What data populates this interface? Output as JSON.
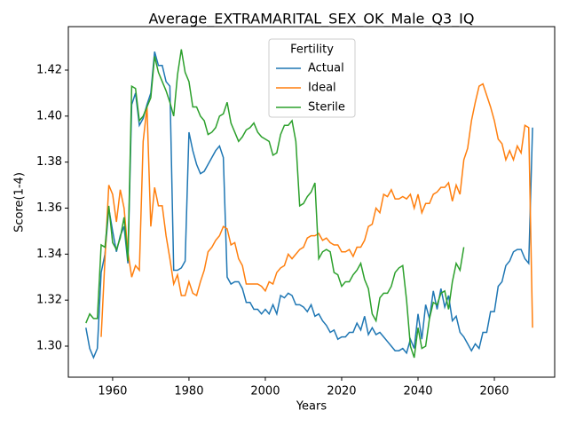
{
  "chart_data": {
    "type": "line",
    "title": "Average_EXTRAMARITAL_SEX_OK_Male_Q3_IQ",
    "x_label": "Years",
    "y_label": "Score(1-4)",
    "legend_title": "Fertility",
    "legend_position": "upper center",
    "xlim": [
      1948.4,
      2075.8
    ],
    "ylim": [
      1.2865,
      1.4389
    ],
    "xticks": [
      1960,
      1980,
      2000,
      2020,
      2040,
      2060
    ],
    "yticks": [
      {
        "value": 1.3,
        "label": "1.30"
      },
      1.32,
      1.34,
      1.36,
      1.38,
      {
        "value": 1.4,
        "label": "1.40"
      },
      1.42
    ],
    "x": [
      1953,
      1954,
      1955,
      1956,
      1957,
      1958,
      1959,
      1960,
      1961,
      1962,
      1963,
      1964,
      1965,
      1966,
      1967,
      1968,
      1969,
      1970,
      1971,
      1972,
      1973,
      1974,
      1975,
      1976,
      1977,
      1978,
      1979,
      1980,
      1981,
      1982,
      1983,
      1984,
      1985,
      1986,
      1987,
      1988,
      1989,
      1990,
      1991,
      1992,
      1993,
      1994,
      1995,
      1996,
      1997,
      1998,
      1999,
      2000,
      2001,
      2002,
      2003,
      2004,
      2005,
      2006,
      2007,
      2008,
      2009,
      2010,
      2011,
      2012,
      2013,
      2014,
      2015,
      2016,
      2017,
      2018,
      2019,
      2020,
      2021,
      2022,
      2023,
      2024,
      2025,
      2026,
      2027,
      2028,
      2029,
      2030,
      2031,
      2032,
      2033,
      2034,
      2035,
      2036,
      2037,
      2038,
      2039,
      2040,
      2041,
      2042,
      2043,
      2044,
      2045,
      2046,
      2047,
      2048,
      2049,
      2050,
      2051,
      2052,
      2053,
      2054,
      2055,
      2056,
      2057,
      2058,
      2059,
      2060,
      2061,
      2062,
      2063,
      2064,
      2065,
      2066,
      2067,
      2068,
      2069,
      2070
    ],
    "series": [
      {
        "name": "Actual",
        "color": "#1f77b4",
        "values": [
          1.308,
          1.299,
          1.295,
          1.299,
          1.332,
          1.34,
          1.36,
          1.35,
          1.341,
          1.348,
          1.352,
          1.336,
          1.405,
          1.41,
          1.396,
          1.399,
          1.405,
          1.41,
          1.428,
          1.422,
          1.422,
          1.415,
          1.413,
          1.333,
          1.333,
          1.334,
          1.337,
          1.393,
          1.385,
          1.379,
          1.375,
          1.376,
          1.379,
          1.382,
          1.385,
          1.387,
          1.382,
          1.33,
          1.327,
          1.328,
          1.328,
          1.325,
          1.319,
          1.319,
          1.316,
          1.316,
          1.314,
          1.316,
          1.314,
          1.318,
          1.314,
          1.322,
          1.321,
          1.323,
          1.322,
          1.318,
          1.318,
          1.317,
          1.315,
          1.318,
          1.313,
          1.314,
          1.311,
          1.309,
          1.306,
          1.307,
          1.303,
          1.304,
          1.304,
          1.306,
          1.306,
          1.31,
          1.307,
          1.313,
          1.305,
          1.308,
          1.305,
          1.306,
          1.304,
          1.302,
          1.3,
          1.298,
          1.298,
          1.299,
          1.297,
          1.303,
          1.299,
          1.314,
          1.303,
          1.318,
          1.312,
          1.324,
          1.316,
          1.325,
          1.317,
          1.322,
          1.311,
          1.313,
          1.306,
          1.304,
          1.301,
          1.298,
          1.301,
          1.299,
          1.306,
          1.306,
          1.315,
          1.315,
          1.326,
          1.328,
          1.335,
          1.337,
          1.341,
          1.342,
          1.342,
          1.338,
          1.336,
          1.395
        ]
      },
      {
        "name": "Ideal",
        "color": "#ff7f0e",
        "values": [
          null,
          null,
          null,
          null,
          1.304,
          1.338,
          1.37,
          1.366,
          1.354,
          1.368,
          1.36,
          1.341,
          1.33,
          1.335,
          1.333,
          1.389,
          1.404,
          1.352,
          1.369,
          1.361,
          1.361,
          1.348,
          1.338,
          1.327,
          1.331,
          1.322,
          1.322,
          1.328,
          1.323,
          1.322,
          1.328,
          1.333,
          1.341,
          1.343,
          1.346,
          1.348,
          1.352,
          1.351,
          1.344,
          1.345,
          1.338,
          1.335,
          1.327,
          1.327,
          1.327,
          1.327,
          1.326,
          1.324,
          1.328,
          1.327,
          1.332,
          1.334,
          1.335,
          1.34,
          1.338,
          1.34,
          1.342,
          1.343,
          1.347,
          1.348,
          1.348,
          1.349,
          1.346,
          1.347,
          1.345,
          1.344,
          1.344,
          1.341,
          1.341,
          1.342,
          1.339,
          1.343,
          1.343,
          1.346,
          1.352,
          1.353,
          1.36,
          1.358,
          1.366,
          1.365,
          1.368,
          1.364,
          1.364,
          1.365,
          1.364,
          1.366,
          1.36,
          1.366,
          1.358,
          1.362,
          1.362,
          1.366,
          1.367,
          1.369,
          1.369,
          1.371,
          1.363,
          1.37,
          1.366,
          1.381,
          1.386,
          1.398,
          1.406,
          1.413,
          1.414,
          1.409,
          1.404,
          1.398,
          1.39,
          1.388,
          1.381,
          1.385,
          1.381,
          1.387,
          1.384,
          1.396,
          1.395,
          1.308
        ]
      },
      {
        "name": "Sterile",
        "color": "#2ca02c",
        "values": [
          1.31,
          1.314,
          1.312,
          1.312,
          1.344,
          1.343,
          1.361,
          1.345,
          1.342,
          1.347,
          1.356,
          1.337,
          1.413,
          1.412,
          1.398,
          1.4,
          1.404,
          1.408,
          1.426,
          1.419,
          1.415,
          1.411,
          1.406,
          1.4,
          1.418,
          1.429,
          1.419,
          1.415,
          1.404,
          1.404,
          1.4,
          1.398,
          1.392,
          1.393,
          1.395,
          1.4,
          1.401,
          1.406,
          1.397,
          1.393,
          1.389,
          1.391,
          1.394,
          1.395,
          1.397,
          1.393,
          1.391,
          1.39,
          1.389,
          1.383,
          1.384,
          1.392,
          1.396,
          1.396,
          1.398,
          1.389,
          1.361,
          1.362,
          1.365,
          1.367,
          1.371,
          1.338,
          1.341,
          1.342,
          1.341,
          1.332,
          1.331,
          1.326,
          1.328,
          1.328,
          1.331,
          1.333,
          1.336,
          1.329,
          1.325,
          1.314,
          1.311,
          1.321,
          1.323,
          1.323,
          1.326,
          1.332,
          1.334,
          1.335,
          1.32,
          1.3,
          1.295,
          1.308,
          1.299,
          1.3,
          1.312,
          1.319,
          1.318,
          1.323,
          1.324,
          1.316,
          1.328,
          1.336,
          1.333,
          1.343,
          null,
          null,
          null,
          null,
          null,
          null,
          null,
          null,
          null,
          null,
          null,
          null,
          null,
          null,
          null,
          null,
          null,
          null
        ]
      }
    ]
  }
}
